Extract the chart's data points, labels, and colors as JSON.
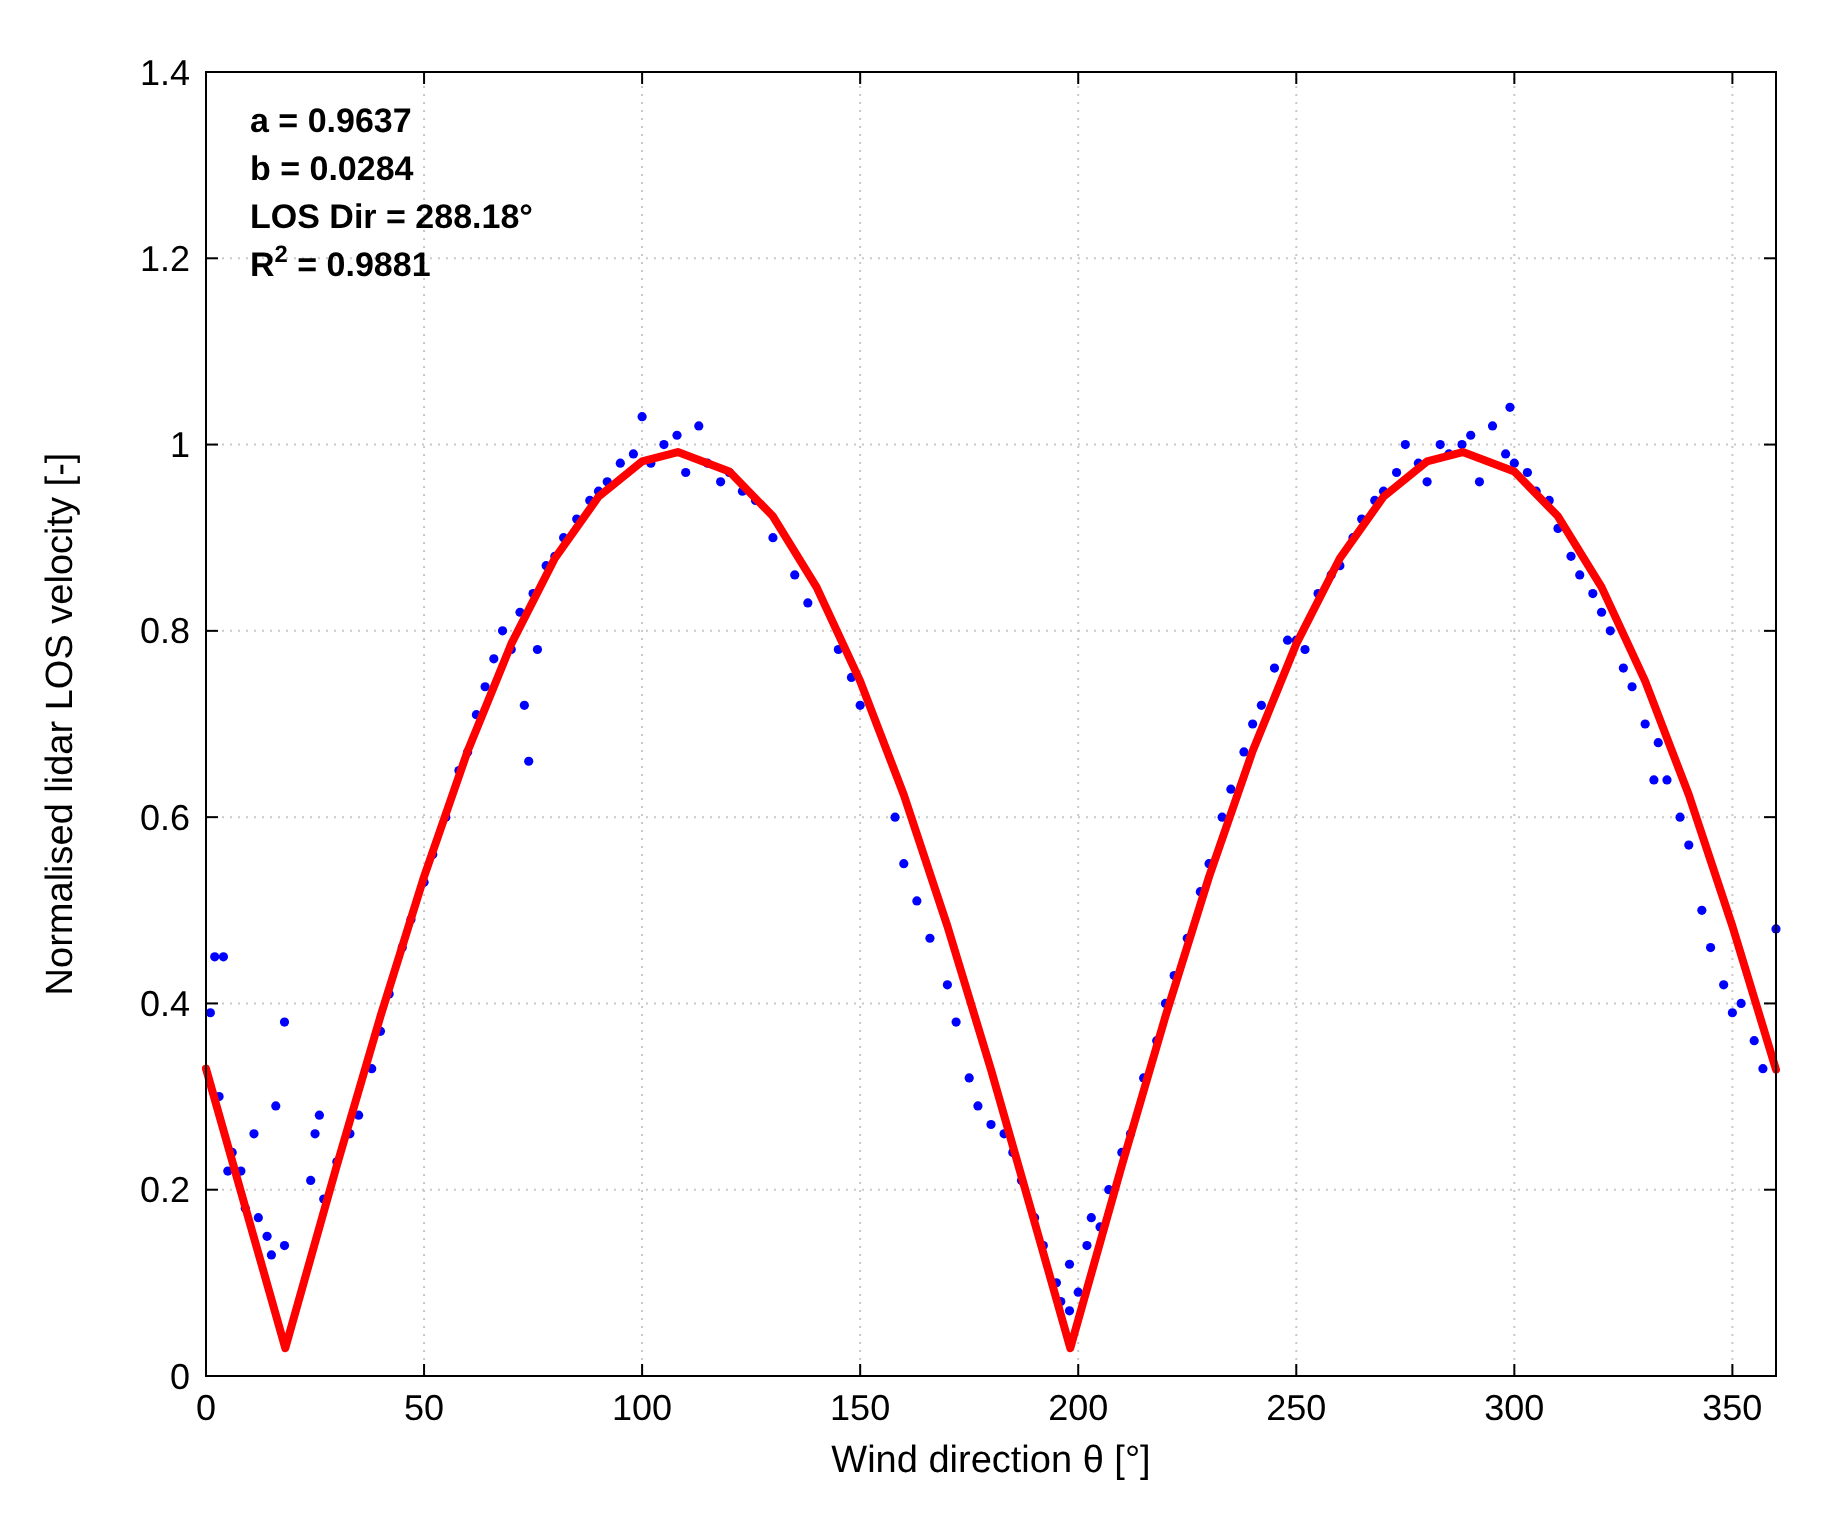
{
  "chart_data": {
    "type": "scatter",
    "xlabel": "Wind direction θ [°]",
    "ylabel": "Normalised lidar LOS velocity [-]",
    "xlim": [
      0,
      360
    ],
    "xticks": [
      0,
      50,
      100,
      150,
      200,
      250,
      300,
      350
    ],
    "ylim": [
      0,
      1.4
    ],
    "yticks": [
      0,
      0.2,
      0.4,
      0.6,
      0.8,
      1,
      1.2,
      1.4
    ],
    "grid": true,
    "annotations": [
      "a = 0.9637",
      "b = 0.0284",
      "LOS Dir = 288.18°",
      "R$^{2}$ = 0.9881"
    ],
    "series": [
      {
        "marker": "circle",
        "color": "#0000ff",
        "x": [
          1,
          2,
          4,
          3,
          5,
          6,
          8,
          9,
          11,
          12,
          14,
          15,
          16,
          18,
          18,
          24,
          25,
          26,
          27,
          30,
          33,
          35,
          38,
          40,
          42,
          45,
          47,
          50,
          52,
          55,
          58,
          60,
          62,
          64,
          66,
          68,
          70,
          72,
          73,
          74,
          75,
          76,
          78,
          80,
          82,
          85,
          88,
          90,
          92,
          95,
          98,
          100,
          102,
          105,
          108,
          110,
          113,
          115,
          118,
          120,
          123,
          126,
          130,
          135,
          138,
          145,
          148,
          150,
          158,
          160,
          163,
          166,
          170,
          172,
          175,
          177,
          180,
          183,
          185,
          187,
          190,
          192,
          195,
          196,
          198,
          198,
          200,
          202,
          203,
          205,
          207,
          210,
          212,
          215,
          218,
          220,
          222,
          225,
          228,
          230,
          233,
          235,
          238,
          240,
          242,
          245,
          248,
          250,
          252,
          255,
          258,
          260,
          263,
          265,
          268,
          270,
          273,
          275,
          278,
          280,
          283,
          285,
          288,
          290,
          292,
          295,
          298,
          299,
          300,
          303,
          305,
          308,
          310,
          313,
          315,
          318,
          320,
          322,
          325,
          327,
          330,
          332,
          333,
          335,
          338,
          340,
          343,
          345,
          348,
          350,
          352,
          355,
          357,
          360
        ],
        "values": [
          0.39,
          0.45,
          0.45,
          0.3,
          0.22,
          0.24,
          0.22,
          0.18,
          0.26,
          0.17,
          0.15,
          0.13,
          0.29,
          0.38,
          0.14,
          0.21,
          0.26,
          0.28,
          0.19,
          0.23,
          0.26,
          0.28,
          0.33,
          0.37,
          0.41,
          0.46,
          0.49,
          0.53,
          0.56,
          0.6,
          0.65,
          0.67,
          0.71,
          0.74,
          0.77,
          0.8,
          0.78,
          0.82,
          0.72,
          0.66,
          0.84,
          0.78,
          0.87,
          0.88,
          0.9,
          0.92,
          0.94,
          0.95,
          0.96,
          0.98,
          0.99,
          1.03,
          0.98,
          1,
          1.01,
          0.97,
          1.02,
          0.98,
          0.96,
          0.97,
          0.95,
          0.94,
          0.9,
          0.86,
          0.83,
          0.78,
          0.75,
          0.72,
          0.6,
          0.55,
          0.51,
          0.47,
          0.42,
          0.38,
          0.32,
          0.29,
          0.27,
          0.26,
          0.24,
          0.21,
          0.17,
          0.14,
          0.1,
          0.08,
          0.07,
          0.12,
          0.09,
          0.14,
          0.17,
          0.16,
          0.2,
          0.24,
          0.26,
          0.32,
          0.36,
          0.4,
          0.43,
          0.47,
          0.52,
          0.55,
          0.6,
          0.63,
          0.67,
          0.7,
          0.72,
          0.76,
          0.79,
          0.79,
          0.78,
          0.84,
          0.86,
          0.87,
          0.9,
          0.92,
          0.94,
          0.95,
          0.97,
          1,
          0.98,
          0.96,
          1,
          0.99,
          1,
          1.01,
          0.96,
          1.02,
          0.99,
          1.04,
          0.98,
          0.97,
          0.95,
          0.94,
          0.91,
          0.88,
          0.86,
          0.84,
          0.82,
          0.8,
          0.76,
          0.74,
          0.7,
          0.64,
          0.68,
          0.64,
          0.6,
          0.57,
          0.5,
          0.46,
          0.42,
          0.39,
          0.4,
          0.36,
          0.33,
          0.48
        ]
      },
      {
        "type": "line",
        "color": "#ff0000",
        "x": [
          0,
          10,
          18.18,
          30,
          40,
          50,
          60,
          70,
          80,
          90,
          100,
          108.18,
          120,
          130,
          140,
          150,
          160,
          170,
          180,
          190,
          198.18,
          210,
          220,
          230,
          240,
          250,
          260,
          270,
          280,
          288.18,
          300,
          310,
          320,
          330,
          340,
          350,
          360
        ],
        "values": [
          0.33,
          0.165,
          0.03,
          0.226,
          0.386,
          0.536,
          0.671,
          0.786,
          0.878,
          0.944,
          0.982,
          0.992,
          0.971,
          0.923,
          0.847,
          0.746,
          0.624,
          0.483,
          0.329,
          0.165,
          0.03,
          0.226,
          0.386,
          0.536,
          0.671,
          0.786,
          0.878,
          0.944,
          0.982,
          0.992,
          0.971,
          0.923,
          0.847,
          0.746,
          0.624,
          0.483,
          0.329
        ]
      }
    ]
  }
}
